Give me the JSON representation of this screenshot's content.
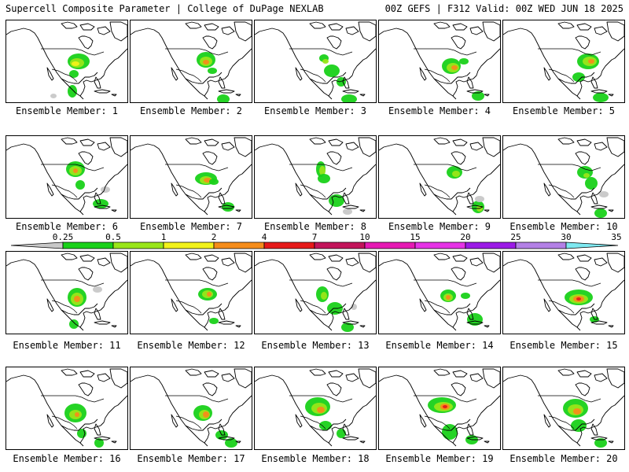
{
  "header": {
    "left": "Supercell Composite Parameter | College of DuPage NEXLAB",
    "right": "00Z GEFS | F312 Valid: 00Z WED JUN 18 2025"
  },
  "colorbar": {
    "levels": [
      "0.25",
      "0.5",
      "1",
      "2",
      "4",
      "7",
      "10",
      "15",
      "20",
      "25",
      "30",
      "35"
    ],
    "colors": [
      "#c8c8c8",
      "#19d119",
      "#99e619",
      "#f2f21a",
      "#f58c1a",
      "#e61919",
      "#c2145a",
      "#e619b3",
      "#e633e6",
      "#9b1ae6",
      "#b380e6",
      "#7ee8f0"
    ]
  },
  "map_style": {
    "land": "#ffffff",
    "coast": "#000000"
  },
  "members": [
    {
      "label": "Ensemble Member: 1"
    },
    {
      "label": "Ensemble Member: 2"
    },
    {
      "label": "Ensemble Member: 3"
    },
    {
      "label": "Ensemble Member: 4"
    },
    {
      "label": "Ensemble Member: 5"
    },
    {
      "label": "Ensemble Member: 6"
    },
    {
      "label": "Ensemble Member: 7"
    },
    {
      "label": "Ensemble Member: 8"
    },
    {
      "label": "Ensemble Member: 9"
    },
    {
      "label": "Ensemble Member: 10"
    },
    {
      "label": "Ensemble Member: 11"
    },
    {
      "label": "Ensemble Member: 12"
    },
    {
      "label": "Ensemble Member: 13"
    },
    {
      "label": "Ensemble Member: 14"
    },
    {
      "label": "Ensemble Member: 15"
    },
    {
      "label": "Ensemble Member: 16"
    },
    {
      "label": "Ensemble Member: 17"
    },
    {
      "label": "Ensemble Member: 18"
    },
    {
      "label": "Ensemble Member: 19"
    },
    {
      "label": "Ensemble Member: 20"
    }
  ]
}
